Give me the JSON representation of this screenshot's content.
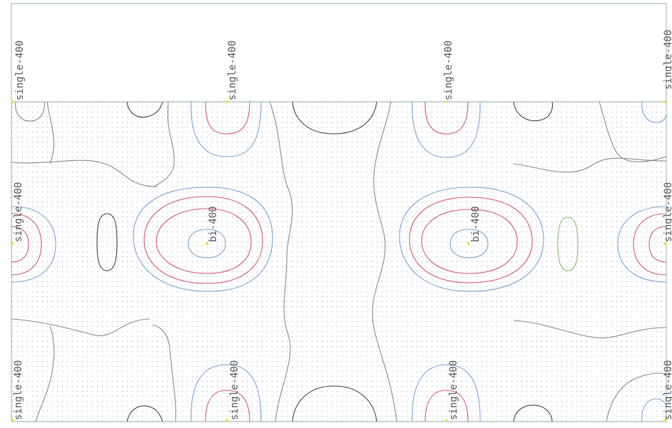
{
  "plot": {
    "title": "",
    "frame_color": "#a8c0b8",
    "dot_color": "#c9d0d6",
    "colors": {
      "red": "#d95a7a",
      "blue": "#7ea6d8",
      "gray": "#8a8e98",
      "dark": "#444852",
      "green": "#8fbf7a",
      "marker": "#e6e64a"
    }
  },
  "labels": {
    "single_top_1": "single-400",
    "single_top_2": "single-400",
    "single_top_3": "single-400",
    "single_top_4": "single-400",
    "single_mid_left": "single-400",
    "single_mid_right": "single-400",
    "single_bot_1": "single-400",
    "single_bot_2": "single-400",
    "single_bot_3": "single-400",
    "single_bot_4": "single-400",
    "bi_left": "bi-400",
    "bi_right": "bi-400"
  }
}
